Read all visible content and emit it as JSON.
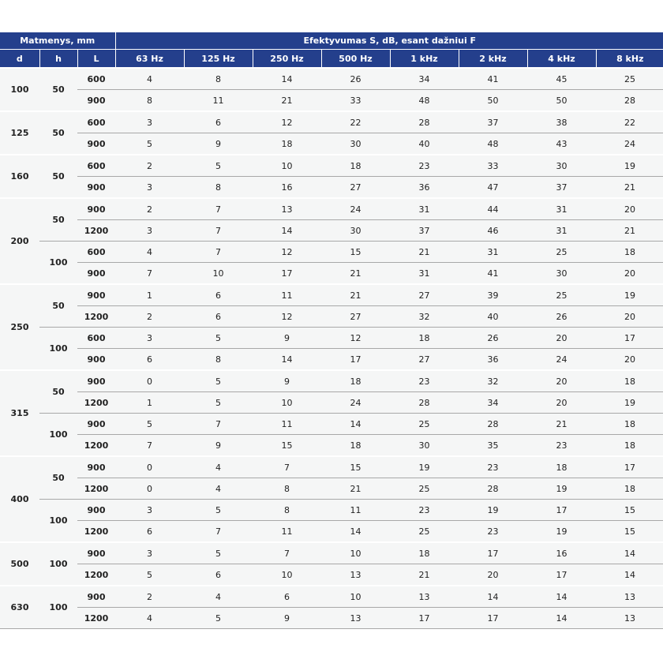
{
  "table": {
    "group_headers": [
      "Matmenys, mm",
      "Efektyvumas S, dB, esant dažniui F"
    ],
    "columns": [
      "d",
      "h",
      "L",
      "63 Hz",
      "125 Hz",
      "250 Hz",
      "500 Hz",
      "1 kHz",
      "2 kHz",
      "4 kHz",
      "8 kHz"
    ],
    "groups": [
      {
        "d": 100,
        "subgroups": [
          {
            "h": 50,
            "rows": [
              {
                "L": 600,
                "values": [
                  4,
                  8,
                  14,
                  26,
                  34,
                  41,
                  45,
                  25
                ]
              },
              {
                "L": 900,
                "values": [
                  8,
                  11,
                  21,
                  33,
                  48,
                  50,
                  50,
                  28
                ]
              }
            ]
          }
        ]
      },
      {
        "d": 125,
        "subgroups": [
          {
            "h": 50,
            "rows": [
              {
                "L": 600,
                "values": [
                  3,
                  6,
                  12,
                  22,
                  28,
                  37,
                  38,
                  22
                ]
              },
              {
                "L": 900,
                "values": [
                  5,
                  9,
                  18,
                  30,
                  40,
                  48,
                  43,
                  24
                ]
              }
            ]
          }
        ]
      },
      {
        "d": 160,
        "subgroups": [
          {
            "h": 50,
            "rows": [
              {
                "L": 600,
                "values": [
                  2,
                  5,
                  10,
                  18,
                  23,
                  33,
                  30,
                  19
                ]
              },
              {
                "L": 900,
                "values": [
                  3,
                  8,
                  16,
                  27,
                  36,
                  47,
                  37,
                  21
                ]
              }
            ]
          }
        ]
      },
      {
        "d": 200,
        "subgroups": [
          {
            "h": 50,
            "rows": [
              {
                "L": 900,
                "values": [
                  2,
                  7,
                  13,
                  24,
                  31,
                  44,
                  31,
                  20
                ]
              },
              {
                "L": 1200,
                "values": [
                  3,
                  7,
                  14,
                  30,
                  37,
                  46,
                  31,
                  21
                ]
              }
            ]
          },
          {
            "h": 100,
            "rows": [
              {
                "L": 600,
                "values": [
                  4,
                  7,
                  12,
                  15,
                  21,
                  31,
                  25,
                  18
                ]
              },
              {
                "L": 900,
                "values": [
                  7,
                  10,
                  17,
                  21,
                  31,
                  41,
                  30,
                  20
                ]
              }
            ]
          }
        ]
      },
      {
        "d": 250,
        "subgroups": [
          {
            "h": 50,
            "rows": [
              {
                "L": 900,
                "values": [
                  1,
                  6,
                  11,
                  21,
                  27,
                  39,
                  25,
                  19
                ]
              },
              {
                "L": 1200,
                "values": [
                  2,
                  6,
                  12,
                  27,
                  32,
                  40,
                  26,
                  20
                ]
              }
            ]
          },
          {
            "h": 100,
            "rows": [
              {
                "L": 600,
                "values": [
                  3,
                  5,
                  9,
                  12,
                  18,
                  26,
                  20,
                  17
                ]
              },
              {
                "L": 900,
                "values": [
                  6,
                  8,
                  14,
                  17,
                  27,
                  36,
                  24,
                  20
                ]
              }
            ]
          }
        ]
      },
      {
        "d": 315,
        "subgroups": [
          {
            "h": 50,
            "rows": [
              {
                "L": 900,
                "values": [
                  0,
                  5,
                  9,
                  18,
                  23,
                  32,
                  20,
                  18
                ]
              },
              {
                "L": 1200,
                "values": [
                  1,
                  5,
                  10,
                  24,
                  28,
                  34,
                  20,
                  19
                ]
              }
            ]
          },
          {
            "h": 100,
            "rows": [
              {
                "L": 900,
                "values": [
                  5,
                  7,
                  11,
                  14,
                  25,
                  28,
                  21,
                  18
                ]
              },
              {
                "L": 1200,
                "values": [
                  7,
                  9,
                  15,
                  18,
                  30,
                  35,
                  23,
                  18
                ]
              }
            ]
          }
        ]
      },
      {
        "d": 400,
        "subgroups": [
          {
            "h": 50,
            "rows": [
              {
                "L": 900,
                "values": [
                  0,
                  4,
                  7,
                  15,
                  19,
                  23,
                  18,
                  17
                ]
              },
              {
                "L": 1200,
                "values": [
                  0,
                  4,
                  8,
                  21,
                  25,
                  28,
                  19,
                  18
                ]
              }
            ]
          },
          {
            "h": 100,
            "rows": [
              {
                "L": 900,
                "values": [
                  3,
                  5,
                  8,
                  11,
                  23,
                  19,
                  17,
                  15
                ]
              },
              {
                "L": 1200,
                "values": [
                  6,
                  7,
                  11,
                  14,
                  25,
                  23,
                  19,
                  15
                ]
              }
            ]
          }
        ]
      },
      {
        "d": 500,
        "subgroups": [
          {
            "h": 100,
            "rows": [
              {
                "L": 900,
                "values": [
                  3,
                  5,
                  7,
                  10,
                  18,
                  17,
                  16,
                  14
                ]
              },
              {
                "L": 1200,
                "values": [
                  5,
                  6,
                  10,
                  13,
                  21,
                  20,
                  17,
                  14
                ]
              }
            ]
          }
        ]
      },
      {
        "d": 630,
        "subgroups": [
          {
            "h": 100,
            "rows": [
              {
                "L": 900,
                "values": [
                  2,
                  4,
                  6,
                  10,
                  13,
                  14,
                  14,
                  13
                ]
              },
              {
                "L": 1200,
                "values": [
                  4,
                  5,
                  9,
                  13,
                  17,
                  17,
                  14,
                  13
                ]
              }
            ]
          }
        ]
      }
    ]
  }
}
